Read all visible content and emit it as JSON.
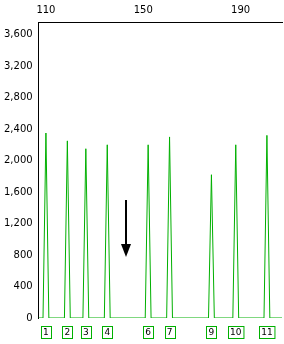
{
  "chart_data": {
    "type": "line",
    "x": [
      107,
      108.8,
      110,
      111.2,
      117.6,
      118.8,
      120,
      125.2,
      126.4,
      127.6,
      134,
      135.2,
      136.4,
      150.8,
      152,
      153.2,
      159.6,
      160.8,
      162,
      176.8,
      178,
      179.2,
      186.8,
      188,
      189.2,
      199.6,
      200.8,
      202,
      207
    ],
    "values": [
      0,
      0,
      2350,
      0,
      0,
      2250,
      0,
      0,
      2150,
      0,
      0,
      2200,
      0,
      0,
      2200,
      0,
      0,
      2300,
      0,
      0,
      1820,
      0,
      0,
      2200,
      0,
      0,
      2320,
      0,
      0
    ],
    "color": "#00b000",
    "xlim": [
      107,
      207
    ],
    "xticks": [
      110,
      150,
      190
    ],
    "ylim": [
      0,
      3760
    ],
    "yticks": [
      0,
      400,
      800,
      1200,
      1600,
      2000,
      2400,
      2800,
      3200,
      3600
    ],
    "grid": false,
    "annotations": [
      {
        "x": 110,
        "text": "1"
      },
      {
        "x": 118.8,
        "text": "2"
      },
      {
        "x": 126.4,
        "text": "3"
      },
      {
        "x": 135.2,
        "text": "4"
      },
      {
        "x": 152,
        "text": "6"
      },
      {
        "x": 160.8,
        "text": "7"
      },
      {
        "x": 178,
        "text": "9"
      },
      {
        "x": 188,
        "text": "10"
      },
      {
        "x": 200.8,
        "text": "11"
      }
    ]
  }
}
